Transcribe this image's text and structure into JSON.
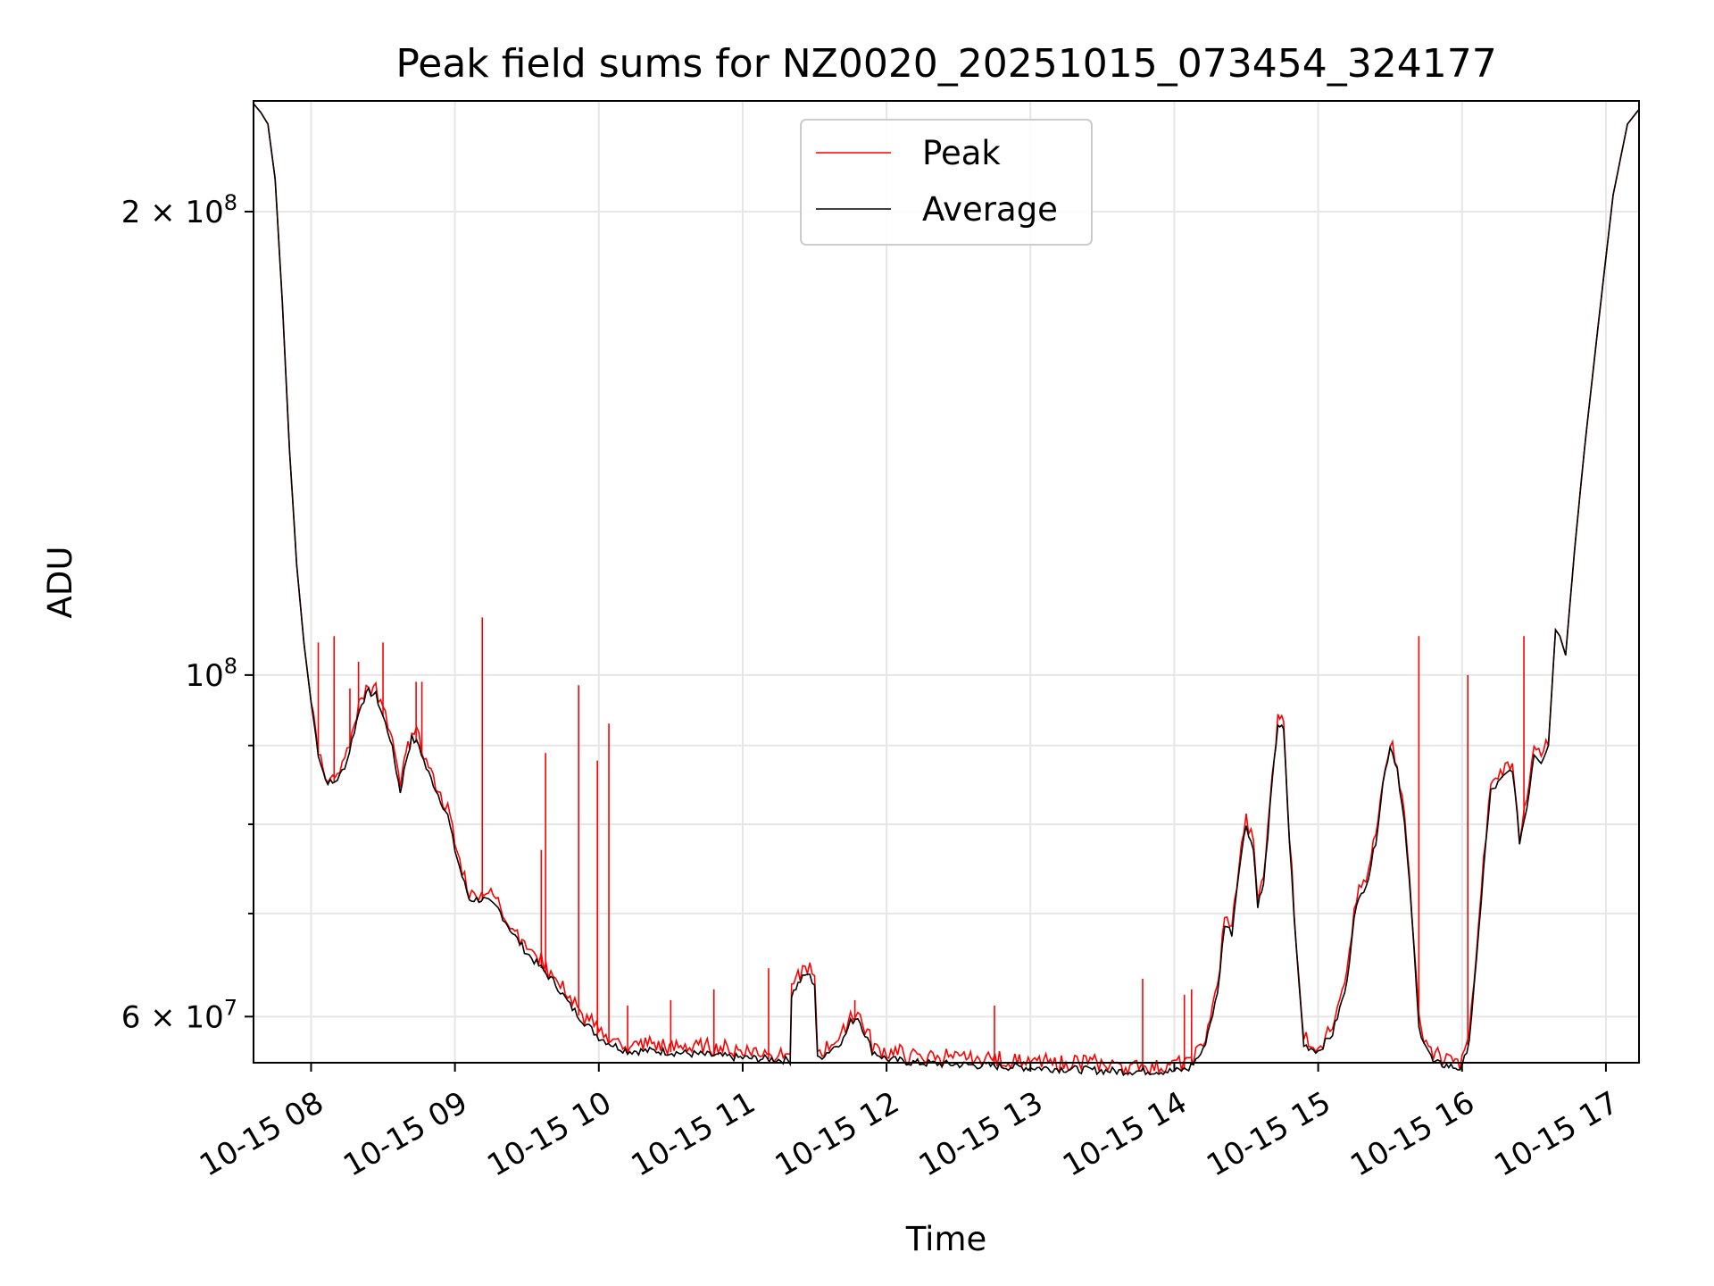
{
  "chart_data": {
    "type": "line",
    "title": "Peak field sums for NZ0020_20251015_073454_324177",
    "xlabel": "Time",
    "ylabel": "ADU",
    "yscale": "log",
    "grid": true,
    "legend_position": "top-center",
    "xlim": [
      7.6,
      17.23
    ],
    "ylim": [
      56000000,
      236000000
    ],
    "x_unit": "hours since 10-15 00:00",
    "x_ticks": [
      {
        "value": 8,
        "label": "10-15 08"
      },
      {
        "value": 9,
        "label": "10-15 09"
      },
      {
        "value": 10,
        "label": "10-15 10"
      },
      {
        "value": 11,
        "label": "10-15 11"
      },
      {
        "value": 12,
        "label": "10-15 12"
      },
      {
        "value": 13,
        "label": "10-15 13"
      },
      {
        "value": 14,
        "label": "10-15 14"
      },
      {
        "value": 15,
        "label": "10-15 15"
      },
      {
        "value": 16,
        "label": "10-15 16"
      },
      {
        "value": 17,
        "label": "10-15 17"
      }
    ],
    "y_ticks": [
      {
        "value": 60000000,
        "mantissa": "6",
        "exponent": "7",
        "sep": "×",
        "base": "10"
      },
      {
        "value": 100000000,
        "mantissa": "",
        "exponent": "8",
        "sep": "",
        "base": "10"
      },
      {
        "value": 200000000,
        "mantissa": "2",
        "exponent": "8",
        "sep": "×",
        "base": "10"
      }
    ],
    "y_minor_ticks": [
      70000000,
      80000000,
      90000000
    ],
    "series": [
      {
        "name": "Average",
        "color": "#000000",
        "points": [
          [
            7.6,
            235
          ],
          [
            7.65,
            232
          ],
          [
            7.7,
            228
          ],
          [
            7.75,
            210
          ],
          [
            7.8,
            175
          ],
          [
            7.85,
            140
          ],
          [
            7.9,
            118
          ],
          [
            7.95,
            105
          ],
          [
            8.0,
            96
          ],
          [
            8.05,
            89
          ],
          [
            8.1,
            85.5
          ],
          [
            8.15,
            85
          ],
          [
            8.2,
            86
          ],
          [
            8.25,
            88
          ],
          [
            8.3,
            92
          ],
          [
            8.35,
            96
          ],
          [
            8.4,
            97.5
          ],
          [
            8.45,
            97
          ],
          [
            8.5,
            94
          ],
          [
            8.55,
            91
          ],
          [
            8.58,
            88
          ],
          [
            8.62,
            84
          ],
          [
            8.66,
            88
          ],
          [
            8.7,
            91
          ],
          [
            8.75,
            90
          ],
          [
            8.8,
            87
          ],
          [
            8.85,
            85
          ],
          [
            8.9,
            83
          ],
          [
            8.95,
            81
          ],
          [
            9.0,
            77
          ],
          [
            9.05,
            74
          ],
          [
            9.1,
            71.5
          ],
          [
            9.2,
            71.5
          ],
          [
            9.3,
            70.5
          ],
          [
            9.4,
            68
          ],
          [
            9.5,
            66
          ],
          [
            9.6,
            64.5
          ],
          [
            9.7,
            63
          ],
          [
            9.8,
            61
          ],
          [
            9.9,
            59.5
          ],
          [
            10.0,
            58.2
          ],
          [
            10.1,
            57.5
          ],
          [
            10.2,
            57
          ],
          [
            10.4,
            57
          ],
          [
            10.6,
            56.8
          ],
          [
            10.8,
            56.6
          ],
          [
            11.0,
            56.4
          ],
          [
            11.2,
            56.3
          ],
          [
            11.33,
            56.2
          ],
          [
            11.34,
            62
          ],
          [
            11.4,
            63.3
          ],
          [
            11.45,
            64
          ],
          [
            11.5,
            63
          ],
          [
            11.52,
            56.3
          ],
          [
            11.6,
            57
          ],
          [
            11.7,
            58
          ],
          [
            11.75,
            59.5
          ],
          [
            11.8,
            60
          ],
          [
            11.85,
            58.5
          ],
          [
            11.9,
            57
          ],
          [
            12.0,
            56.3
          ],
          [
            12.2,
            56
          ],
          [
            12.4,
            55.9
          ],
          [
            12.6,
            55.8
          ],
          [
            12.8,
            55.7
          ],
          [
            13.0,
            55.6
          ],
          [
            13.2,
            55.5
          ],
          [
            13.4,
            55.4
          ],
          [
            13.6,
            55.3
          ],
          [
            13.8,
            55.3
          ],
          [
            14.0,
            55.3
          ],
          [
            14.1,
            55.5
          ],
          [
            14.2,
            57
          ],
          [
            14.3,
            62
          ],
          [
            14.35,
            69
          ],
          [
            14.4,
            68
          ],
          [
            14.45,
            75
          ],
          [
            14.5,
            80
          ],
          [
            14.55,
            77
          ],
          [
            14.58,
            71
          ],
          [
            14.62,
            73
          ],
          [
            14.68,
            85
          ],
          [
            14.72,
            93
          ],
          [
            14.76,
            92
          ],
          [
            14.8,
            78
          ],
          [
            14.85,
            66
          ],
          [
            14.9,
            57.5
          ],
          [
            15.0,
            57
          ],
          [
            15.1,
            58.5
          ],
          [
            15.2,
            63
          ],
          [
            15.25,
            70
          ],
          [
            15.3,
            72
          ],
          [
            15.35,
            74
          ],
          [
            15.4,
            78
          ],
          [
            15.45,
            85
          ],
          [
            15.5,
            90
          ],
          [
            15.55,
            87
          ],
          [
            15.6,
            80
          ],
          [
            15.65,
            70
          ],
          [
            15.7,
            59
          ],
          [
            15.8,
            56
          ],
          [
            16.0,
            55.5
          ],
          [
            16.05,
            58
          ],
          [
            16.1,
            65
          ],
          [
            16.15,
            75
          ],
          [
            16.2,
            84
          ],
          [
            16.25,
            85
          ],
          [
            16.3,
            86
          ],
          [
            16.35,
            87
          ],
          [
            16.4,
            78
          ],
          [
            16.45,
            82
          ],
          [
            16.5,
            89
          ],
          [
            16.55,
            88
          ],
          [
            16.6,
            90
          ],
          [
            16.65,
            107
          ],
          [
            16.68,
            106
          ],
          [
            16.72,
            103
          ],
          [
            16.78,
            120
          ],
          [
            16.85,
            140
          ],
          [
            16.95,
            170
          ],
          [
            17.05,
            205
          ],
          [
            17.15,
            228
          ],
          [
            17.23,
            233
          ]
        ]
      },
      {
        "name": "Peak",
        "color": "#ff0000",
        "spikes": [
          [
            8.05,
            105
          ],
          [
            8.16,
            106
          ],
          [
            8.27,
            98
          ],
          [
            8.33,
            102
          ],
          [
            8.5,
            105
          ],
          [
            8.73,
            99
          ],
          [
            8.77,
            99
          ],
          [
            9.19,
            109
          ],
          [
            9.6,
            77
          ],
          [
            9.63,
            89
          ],
          [
            9.86,
            98.5
          ],
          [
            9.99,
            88
          ],
          [
            10.07,
            93
          ],
          [
            10.2,
            61
          ],
          [
            10.5,
            61.5
          ],
          [
            10.8,
            62.5
          ],
          [
            11.18,
            64.5
          ],
          [
            11.78,
            61.5
          ],
          [
            12.75,
            61
          ],
          [
            13.78,
            63.5
          ],
          [
            14.07,
            62
          ],
          [
            14.12,
            62.5
          ],
          [
            15.7,
            106
          ],
          [
            16.04,
            100
          ],
          [
            16.43,
            106
          ]
        ]
      }
    ]
  }
}
